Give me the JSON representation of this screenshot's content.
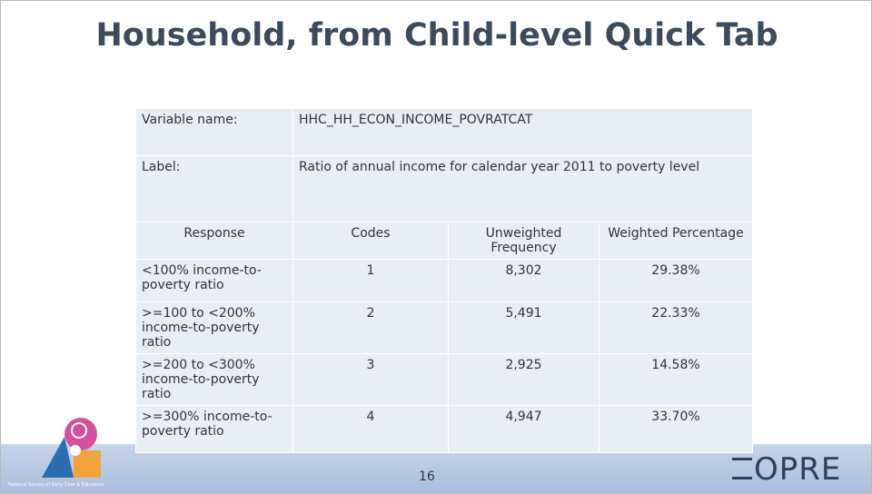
{
  "title": "Household, from Child-level Quick Tab",
  "variable": {
    "label": "Variable name:",
    "value": "HHC_HH_ECON_INCOME_POVRATCAT"
  },
  "description": {
    "label": "Label:",
    "value": "Ratio of annual income for calendar year 2011 to poverty level"
  },
  "table": {
    "header": [
      "Response",
      "Codes",
      "Unweighted Frequency",
      "Weighted Percentage"
    ],
    "rows": [
      [
        "<100% income-to-poverty ratio",
        "1",
        "8,302",
        "29.38%"
      ],
      [
        ">=100 to <200% income-to-poverty ratio",
        "2",
        "5,491",
        "22.33%"
      ],
      [
        ">=200 to <300% income-to-poverty ratio",
        "3",
        "2,925",
        "14.58%"
      ],
      [
        ">=300% income-to-poverty ratio",
        "4",
        "4,947",
        "33.70%"
      ]
    ]
  },
  "footer": {
    "page_number": "16",
    "logo": "OPRE",
    "survey": "National Survey of Early Care & Education"
  }
}
